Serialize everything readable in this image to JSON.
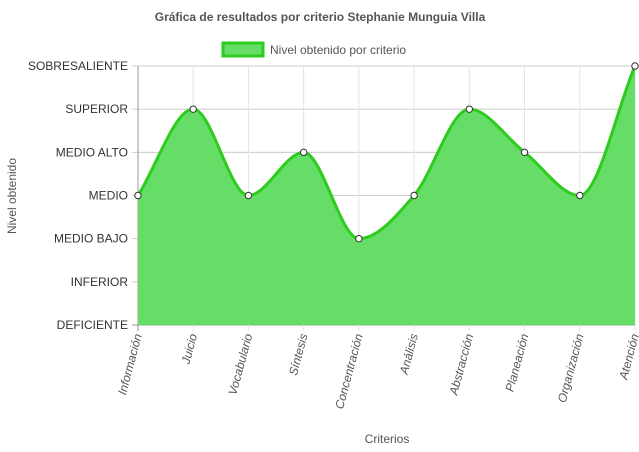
{
  "chart_data": {
    "type": "area",
    "title": "Gráfica de resultados por criterio Stephanie Munguia Villa",
    "xlabel": "Criterios",
    "ylabel": "Nivel obtenido",
    "y_categories": [
      "DEFICIENTE",
      "INFERIOR",
      "MEDIO BAJO",
      "MEDIO",
      "MEDIO ALTO",
      "SUPERIOR",
      "SOBRESALIENTE"
    ],
    "ylim": [
      0,
      6
    ],
    "categories": [
      "Información",
      "Juicio",
      "Vocabulario",
      "Síntesis",
      "Concentración",
      "Análisis",
      "Abstracción",
      "Planeación",
      "Organización",
      "Atención"
    ],
    "series": [
      {
        "name": "Nivel obtenido por criterio",
        "values": [
          3,
          5,
          3,
          4,
          2,
          3,
          5,
          4,
          3,
          6
        ],
        "color": "#2ecc1f",
        "fill": "#66dd66"
      }
    ],
    "legend": "top-center",
    "grid": true
  }
}
